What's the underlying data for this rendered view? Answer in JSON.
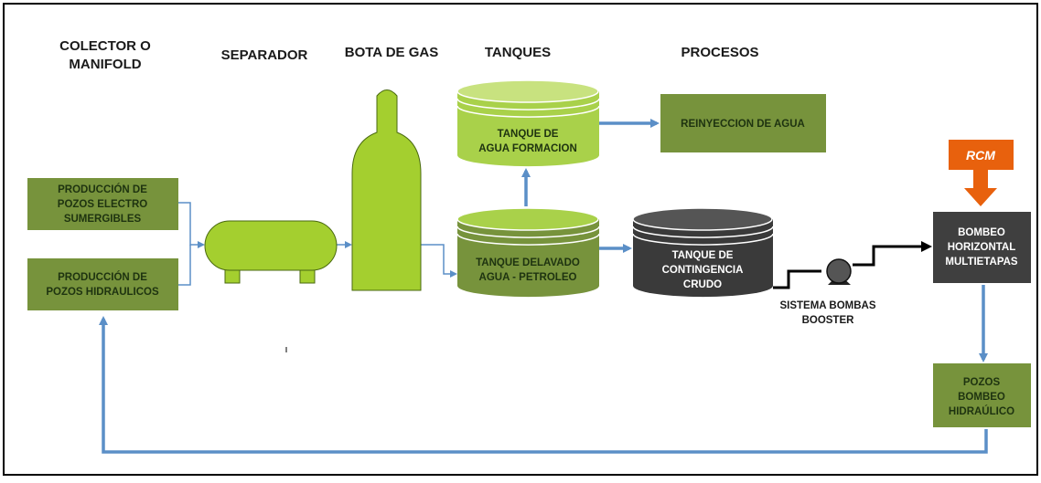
{
  "headers": [
    [
      "COLECTOR O",
      "MANIFOLD"
    ],
    [
      "SEPARADOR"
    ],
    [
      "BOTA DE GAS"
    ],
    [
      "TANQUES"
    ],
    [
      "PROCESOS"
    ]
  ],
  "nodes": [
    {
      "label": [
        "PRODUCCIÓN DE",
        "POZOS ELECTRO",
        "SUMERGIBLES"
      ]
    },
    {
      "label": [
        "PRODUCCIÓN DE",
        "POZOS HIDRAULICOS"
      ]
    },
    {
      "label": [
        "TANQUE DE",
        "AGUA  FORMACION"
      ]
    },
    {
      "label": [
        "REINYECCION DE AGUA"
      ]
    },
    {
      "label": [
        "TANQUE DELAVADO",
        "AGUA - PETROLEO"
      ]
    },
    {
      "label": [
        "TANQUE DE",
        "CONTINGENCIA",
        "CRUDO"
      ]
    },
    {
      "label": [
        "SISTEMA BOMBAS",
        "BOOSTER"
      ]
    },
    {
      "label": [
        "RCM"
      ]
    },
    {
      "label": [
        "BOMBEO",
        "HORIZONTAL",
        "MULTIETAPAS"
      ]
    },
    {
      "label": [
        "POZOS",
        "BOMBEO",
        "HIDRAÚLICO"
      ]
    }
  ]
}
